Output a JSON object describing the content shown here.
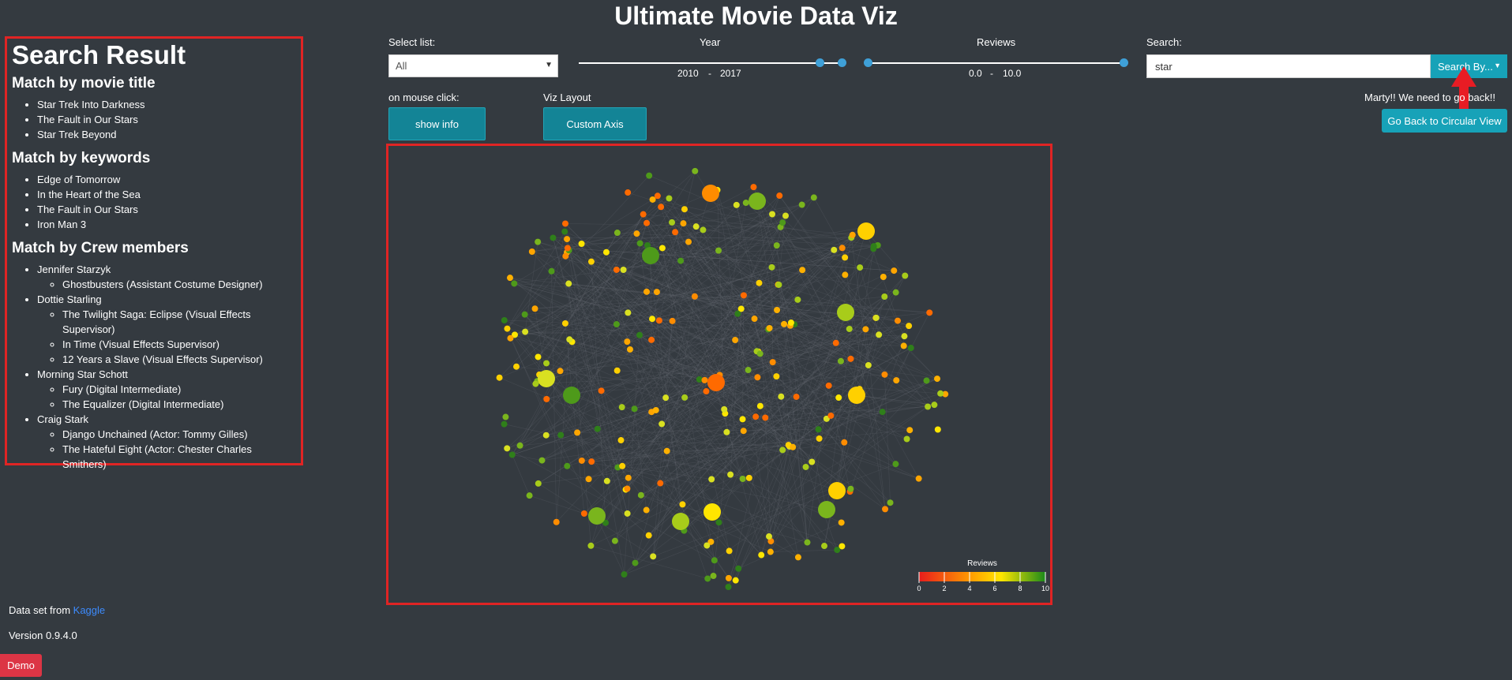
{
  "app_title": "Ultimate Movie Data Viz",
  "result": {
    "heading": "Search Result",
    "title_heading": "Match by movie title",
    "title_matches": [
      "Star Trek Into Darkness",
      "The Fault in Our Stars",
      "Star Trek Beyond"
    ],
    "keyword_heading": "Match by keywords",
    "keyword_matches": [
      "Edge of Tomorrow",
      "In the Heart of the Sea",
      "The Fault in Our Stars",
      "Iron Man 3"
    ],
    "crew_heading": "Match by Crew members",
    "crew": [
      {
        "name": "Jennifer Starzyk",
        "movies": [
          "Ghostbusters (Assistant Costume Designer)"
        ]
      },
      {
        "name": "Dottie Starling",
        "movies": [
          "The Twilight Saga: Eclipse (Visual Effects Supervisor)",
          "In Time (Visual Effects Supervisor)",
          "12 Years a Slave (Visual Effects Supervisor)"
        ]
      },
      {
        "name": "Morning Star Schott",
        "movies": [
          "Fury (Digital Intermediate)",
          "The Equalizer (Digital Intermediate)"
        ]
      },
      {
        "name": "Craig Stark",
        "movies": [
          "Django Unchained (Actor: Tommy Gilles)",
          "The Hateful Eight (Actor: Chester Charles Smithers)"
        ]
      }
    ]
  },
  "controls": {
    "select_label": "Select list:",
    "select_value": "All",
    "year_label": "Year",
    "year_min": "2010",
    "year_max": "2017",
    "reviews_label": "Reviews",
    "reviews_min": "0.0",
    "reviews_max": "10.0",
    "range_dash": "-",
    "search_label": "Search:",
    "search_value": "star",
    "search_button": "Search By...",
    "mouse_click_label": "on mouse click:",
    "mouse_click_button": "show info",
    "layout_label": "Viz Layout",
    "layout_button": "Custom Axis",
    "marty_text": "Marty!! We need to go back!!",
    "back_button": "Go Back to Circular View"
  },
  "legend": {
    "title": "Reviews",
    "ticks": [
      "0",
      "2",
      "4",
      "6",
      "8",
      "10"
    ]
  },
  "footer": {
    "dataset_prefix": "Data set from",
    "dataset_link": "Kaggle",
    "version": "Version 0.9.4.0",
    "demo": "Demo"
  },
  "colors": {
    "accent": "#17a2b8",
    "highlight_border": "#e02424",
    "demo": "#dc3545",
    "background": "#343a40"
  }
}
